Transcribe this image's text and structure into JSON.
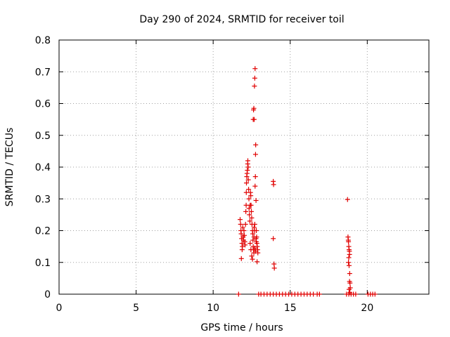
{
  "chart_data": {
    "type": "scatter",
    "title": "Day 290 of 2024, SRMTID for receiver toil",
    "xlabel": "GPS time / hours",
    "ylabel": "SRMTID / TECUs",
    "xlim": [
      0,
      24
    ],
    "ylim": [
      0,
      0.8
    ],
    "xticks": [
      0,
      5,
      10,
      15,
      20
    ],
    "xtick_labels": [
      "0",
      "5",
      "10",
      "15",
      "20"
    ],
    "yticks": [
      0,
      0.1,
      0.2,
      0.3,
      0.4,
      0.5,
      0.6,
      0.7,
      0.8
    ],
    "ytick_labels": [
      "0",
      "0.1",
      "0.2",
      "0.3",
      "0.4",
      "0.5",
      "0.6",
      "0.7",
      "0.8"
    ],
    "grid": true,
    "marker": "+",
    "marker_color": "#e00000",
    "series": [
      {
        "name": "SRMTID",
        "points": [
          [
            11.65,
            0.0
          ],
          [
            12.95,
            0.0
          ],
          [
            13.1,
            0.0
          ],
          [
            13.3,
            0.0
          ],
          [
            13.5,
            0.0
          ],
          [
            13.7,
            0.0
          ],
          [
            13.9,
            0.0
          ],
          [
            14.1,
            0.0
          ],
          [
            14.3,
            0.0
          ],
          [
            14.5,
            0.0
          ],
          [
            14.7,
            0.0
          ],
          [
            14.9,
            0.0
          ],
          [
            15.1,
            0.0
          ],
          [
            15.3,
            0.0
          ],
          [
            15.5,
            0.0
          ],
          [
            15.7,
            0.0
          ],
          [
            15.9,
            0.0
          ],
          [
            16.1,
            0.0
          ],
          [
            16.3,
            0.0
          ],
          [
            16.5,
            0.0
          ],
          [
            16.75,
            0.0
          ],
          [
            16.9,
            0.0
          ],
          [
            18.65,
            0.0
          ],
          [
            18.8,
            0.0
          ],
          [
            18.95,
            0.0
          ],
          [
            19.1,
            0.0
          ],
          [
            19.25,
            0.0
          ],
          [
            20.05,
            0.0
          ],
          [
            20.2,
            0.0
          ],
          [
            20.35,
            0.0
          ],
          [
            20.5,
            0.0
          ],
          [
            11.75,
            0.235
          ],
          [
            11.78,
            0.22
          ],
          [
            11.8,
            0.2
          ],
          [
            11.82,
            0.19
          ],
          [
            11.85,
            0.175
          ],
          [
            11.87,
            0.16
          ],
          [
            11.9,
            0.15
          ],
          [
            11.88,
            0.14
          ],
          [
            11.92,
            0.21
          ],
          [
            11.95,
            0.18
          ],
          [
            11.97,
            0.17
          ],
          [
            12.0,
            0.2
          ],
          [
            12.02,
            0.185
          ],
          [
            12.05,
            0.165
          ],
          [
            12.07,
            0.155
          ],
          [
            11.83,
            0.112
          ],
          [
            12.1,
            0.22
          ],
          [
            12.12,
            0.26
          ],
          [
            12.14,
            0.28
          ],
          [
            12.15,
            0.32
          ],
          [
            12.16,
            0.35
          ],
          [
            12.18,
            0.37
          ],
          [
            12.2,
            0.38
          ],
          [
            12.22,
            0.39
          ],
          [
            12.24,
            0.41
          ],
          [
            12.25,
            0.42
          ],
          [
            12.27,
            0.4
          ],
          [
            12.28,
            0.36
          ],
          [
            12.3,
            0.33
          ],
          [
            12.32,
            0.3
          ],
          [
            12.33,
            0.27
          ],
          [
            12.35,
            0.25
          ],
          [
            12.38,
            0.23
          ],
          [
            12.4,
            0.28
          ],
          [
            12.42,
            0.32
          ],
          [
            12.44,
            0.31
          ],
          [
            12.46,
            0.28
          ],
          [
            12.48,
            0.26
          ],
          [
            12.5,
            0.24
          ],
          [
            12.52,
            0.22
          ],
          [
            12.55,
            0.2
          ],
          [
            12.57,
            0.19
          ],
          [
            12.58,
            0.17
          ],
          [
            12.6,
            0.15
          ],
          [
            12.62,
            0.14
          ],
          [
            12.64,
            0.13
          ],
          [
            12.5,
            0.12
          ],
          [
            12.45,
            0.14
          ],
          [
            12.4,
            0.16
          ],
          [
            12.55,
            0.11
          ],
          [
            12.66,
            0.21
          ],
          [
            12.68,
            0.2
          ],
          [
            12.7,
            0.22
          ],
          [
            12.72,
            0.34
          ],
          [
            12.74,
            0.37
          ],
          [
            12.75,
            0.44
          ],
          [
            12.76,
            0.47
          ],
          [
            12.6,
            0.55
          ],
          [
            12.62,
            0.58
          ],
          [
            12.64,
            0.585
          ],
          [
            12.66,
            0.55
          ],
          [
            12.68,
            0.655
          ],
          [
            12.7,
            0.68
          ],
          [
            12.72,
            0.71
          ],
          [
            12.78,
            0.295
          ],
          [
            12.8,
            0.2
          ],
          [
            12.82,
            0.18
          ],
          [
            12.84,
            0.16
          ],
          [
            12.86,
            0.15
          ],
          [
            12.88,
            0.14
          ],
          [
            12.9,
            0.13
          ],
          [
            12.78,
            0.175
          ],
          [
            12.8,
            0.165
          ],
          [
            12.85,
            0.102
          ],
          [
            12.7,
            0.145
          ],
          [
            12.75,
            0.135
          ],
          [
            12.65,
            0.18
          ],
          [
            13.9,
            0.355
          ],
          [
            13.92,
            0.345
          ],
          [
            13.9,
            0.175
          ],
          [
            13.95,
            0.095
          ],
          [
            13.97,
            0.082
          ],
          [
            18.72,
            0.298
          ],
          [
            18.75,
            0.18
          ],
          [
            18.77,
            0.17
          ],
          [
            18.78,
            0.165
          ],
          [
            18.8,
            0.15
          ],
          [
            18.82,
            0.14
          ],
          [
            18.84,
            0.135
          ],
          [
            18.85,
            0.125
          ],
          [
            18.8,
            0.115
          ],
          [
            18.78,
            0.1
          ],
          [
            18.82,
            0.09
          ],
          [
            18.86,
            0.065
          ],
          [
            18.85,
            0.04
          ],
          [
            18.88,
            0.035
          ],
          [
            18.9,
            0.02
          ],
          [
            18.82,
            0.015
          ],
          [
            18.87,
            0.005
          ]
        ]
      }
    ]
  }
}
